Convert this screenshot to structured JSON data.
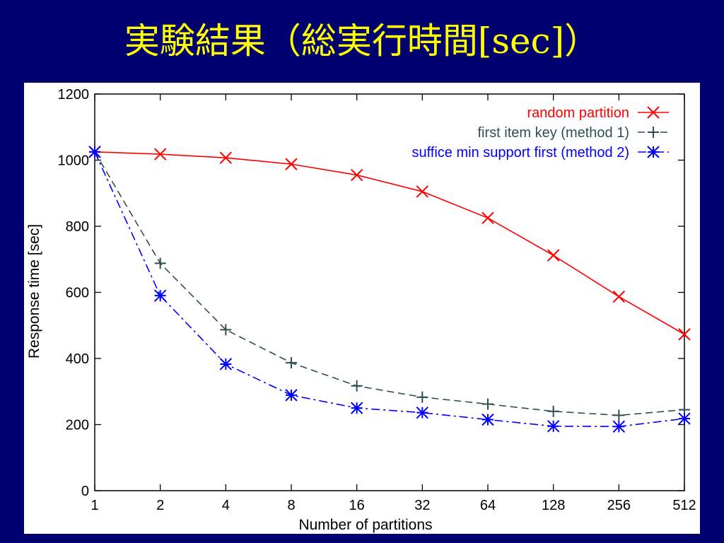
{
  "slide": {
    "title": "実験結果（総実行時間[sec]）",
    "background": "#00006e",
    "title_color": "#ffff00"
  },
  "chart_data": {
    "type": "line",
    "title": "",
    "xlabel": "Number of partitions",
    "ylabel": "Response time [sec]",
    "x_scale": "log2",
    "categories": [
      "1",
      "2",
      "4",
      "8",
      "16",
      "32",
      "64",
      "128",
      "256",
      "512"
    ],
    "ylim": [
      0,
      1200
    ],
    "yticks": [
      0,
      200,
      400,
      600,
      800,
      1000,
      1200
    ],
    "grid": false,
    "legend_position": "top-right",
    "series": [
      {
        "name": "random partition",
        "color": "#ff0000",
        "marker": "x",
        "dash": "solid",
        "values": [
          1025,
          1018,
          1007,
          988,
          955,
          905,
          825,
          712,
          587,
          473
        ]
      },
      {
        "name": "first item key (method 1)",
        "color": "#2f4f4f",
        "marker": "+",
        "dash": "dashed",
        "values": [
          1025,
          688,
          487,
          387,
          317,
          283,
          262,
          240,
          228,
          245
        ]
      },
      {
        "name": "suffice min support first (method 2)",
        "color": "#0000ff",
        "marker": "asterisk",
        "dash": "dash-dot",
        "values": [
          1025,
          590,
          383,
          289,
          250,
          236,
          215,
          195,
          194,
          218
        ]
      }
    ]
  }
}
